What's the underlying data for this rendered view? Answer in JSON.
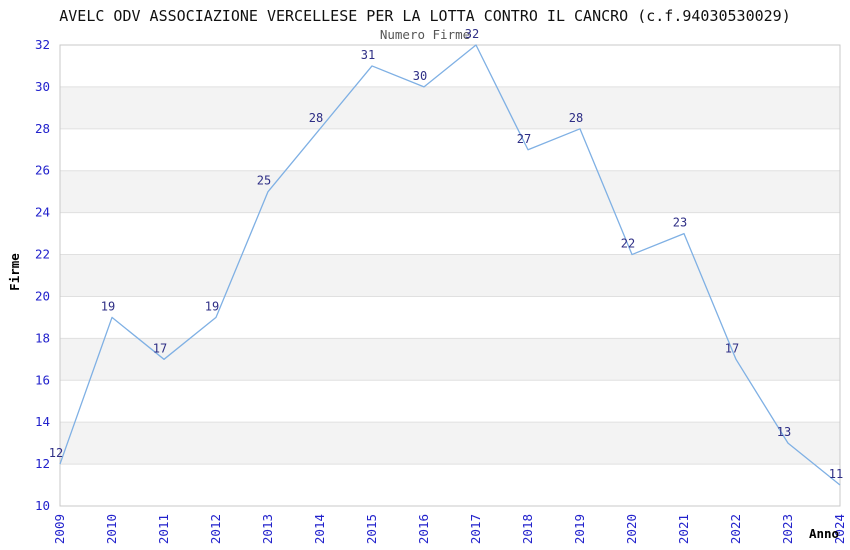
{
  "header": {
    "title": "AVELC ODV ASSOCIAZIONE VERCELLESE PER LA LOTTA CONTRO IL CANCRO (c.f.94030530029)",
    "subtitle": "Numero Firme"
  },
  "chart_data": {
    "type": "line",
    "title": "Numero Firme",
    "xlabel": "Anno",
    "ylabel": "Firme",
    "categories": [
      "2009",
      "2010",
      "2011",
      "2012",
      "2013",
      "2014",
      "2015",
      "2016",
      "2017",
      "2018",
      "2019",
      "2020",
      "2021",
      "2022",
      "2023",
      "2024"
    ],
    "values": [
      12,
      19,
      17,
      19,
      25,
      28,
      31,
      30,
      32,
      27,
      28,
      22,
      23,
      17,
      13,
      11
    ],
    "ylim": [
      10,
      32
    ],
    "ytick_step": 2,
    "yticks": [
      10,
      12,
      14,
      16,
      18,
      20,
      22,
      24,
      26,
      28,
      30,
      32
    ],
    "grid": true,
    "legend": "none",
    "band_pattern": "alternating-horizontal",
    "colors": {
      "line": "#7fb0e4",
      "data_label": "#2e2e85",
      "tick_label": "#2222cc",
      "axis_label": "#000000",
      "band": "#f3f3f3",
      "gridline": "#e0e0e0",
      "plot_border": "#c9c9c9",
      "title": "#111111",
      "subtitle": "#555555",
      "background": "#ffffff"
    }
  }
}
